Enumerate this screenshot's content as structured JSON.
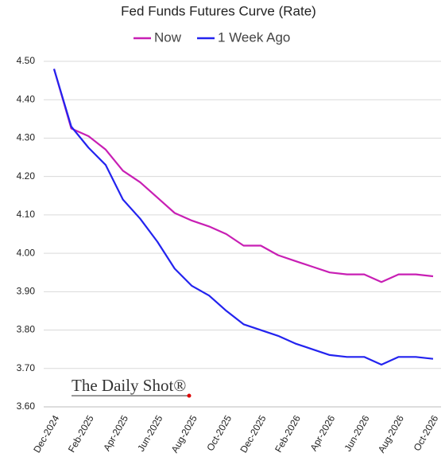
{
  "chart_data": {
    "type": "line",
    "title": "Fed Funds Futures Curve (Rate)",
    "categories": [
      "Dec-2024",
      null,
      "Feb-2025",
      null,
      "Apr-2025",
      null,
      "Jun-2025",
      null,
      "Aug-2025",
      null,
      "Oct-2025",
      null,
      "Dec-2025",
      null,
      "Feb-2026",
      null,
      "Apr-2026",
      null,
      "Jun-2026",
      null,
      "Aug-2026",
      null,
      "Oct-2026"
    ],
    "series": [
      {
        "name": "Now",
        "color": "#c81fb4",
        "values": [
          4.48,
          4.325,
          4.305,
          4.27,
          4.215,
          4.185,
          4.145,
          4.105,
          4.085,
          4.07,
          4.05,
          4.02,
          4.02,
          3.995,
          3.98,
          3.965,
          3.95,
          3.945,
          3.945,
          3.925,
          3.945,
          3.945,
          3.94
        ]
      },
      {
        "name": "1 Week Ago",
        "color": "#2323ef",
        "values": [
          4.48,
          4.33,
          4.275,
          4.23,
          4.14,
          4.09,
          4.03,
          3.96,
          3.915,
          3.89,
          3.85,
          3.815,
          3.8,
          3.785,
          3.765,
          3.75,
          3.735,
          3.73,
          3.73,
          3.71,
          3.73,
          3.73,
          3.725
        ]
      }
    ],
    "ylim": [
      3.6,
      4.5
    ],
    "yticks": [
      {
        "value": 3.6,
        "label": "3.60"
      },
      {
        "value": 3.7,
        "label": "3.70"
      },
      {
        "value": 3.8,
        "label": "3.80"
      },
      {
        "value": 3.9,
        "label": "3.90"
      },
      {
        "value": 4.0,
        "label": "4.00"
      },
      {
        "value": 4.1,
        "label": "4.10"
      },
      {
        "value": 4.2,
        "label": "4.20"
      },
      {
        "value": 4.3,
        "label": "4.30"
      },
      {
        "value": 4.4,
        "label": "4.40"
      },
      {
        "value": 4.5,
        "label": "4.50"
      }
    ],
    "grid": true,
    "legend": "top",
    "annotation": "The Daily Shot®"
  }
}
